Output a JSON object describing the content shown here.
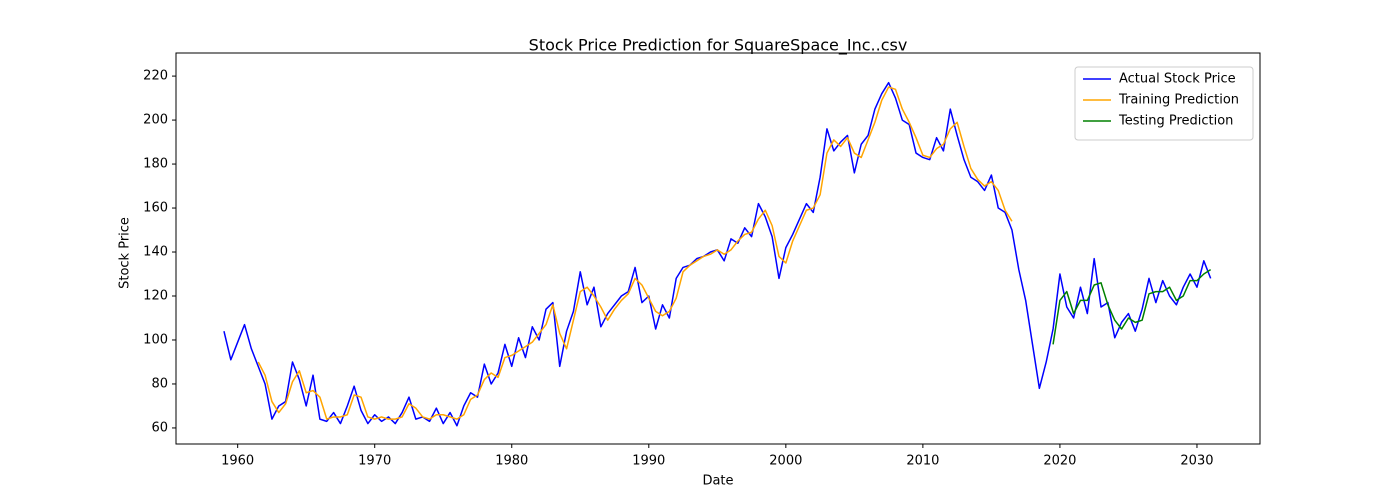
{
  "chart_data": {
    "type": "line",
    "title": "Stock Price Prediction for SquareSpace_Inc..csv",
    "x_label": "Date",
    "y_label": "Stock Price",
    "x": [
      1959.0,
      1959.5,
      1960.0,
      1960.5,
      1961.0,
      1961.5,
      1962.0,
      1962.5,
      1963.0,
      1963.5,
      1964.0,
      1964.5,
      1965.0,
      1965.5,
      1966.0,
      1966.5,
      1967.0,
      1967.5,
      1968.0,
      1968.5,
      1969.0,
      1969.5,
      1970.0,
      1970.5,
      1971.0,
      1971.5,
      1972.0,
      1972.5,
      1973.0,
      1973.5,
      1974.0,
      1974.5,
      1975.0,
      1975.5,
      1976.0,
      1976.5,
      1977.0,
      1977.5,
      1978.0,
      1978.5,
      1979.0,
      1979.5,
      1980.0,
      1980.5,
      1981.0,
      1981.5,
      1982.0,
      1982.5,
      1983.0,
      1983.5,
      1984.0,
      1984.5,
      1985.0,
      1985.5,
      1986.0,
      1986.5,
      1987.0,
      1987.5,
      1988.0,
      1988.5,
      1989.0,
      1989.5,
      1990.0,
      1990.5,
      1991.0,
      1991.5,
      1992.0,
      1992.5,
      1993.0,
      1993.5,
      1994.0,
      1994.5,
      1995.0,
      1995.5,
      1996.0,
      1996.5,
      1997.0,
      1997.5,
      1998.0,
      1998.5,
      1999.0,
      1999.5,
      2000.0,
      2000.5,
      2001.0,
      2001.5,
      2002.0,
      2002.5,
      2003.0,
      2003.5,
      2004.0,
      2004.5,
      2005.0,
      2005.5,
      2006.0,
      2006.5,
      2007.0,
      2007.5,
      2008.0,
      2008.5,
      2009.0,
      2009.5,
      2010.0,
      2010.5,
      2011.0,
      2011.5,
      2012.0,
      2012.5,
      2013.0,
      2013.5,
      2014.0,
      2014.5,
      2015.0,
      2015.5,
      2016.0,
      2016.5,
      2017.0,
      2017.5,
      2018.0,
      2018.5,
      2019.0,
      2019.5,
      2020.0,
      2020.5,
      2021.0,
      2021.5,
      2022.0,
      2022.5,
      2023.0,
      2023.5,
      2024.0,
      2024.5,
      2025.0,
      2025.5,
      2026.0,
      2026.5,
      2027.0,
      2027.5,
      2028.0,
      2028.5,
      2029.0,
      2029.5,
      2030.0,
      2030.5,
      2031.0
    ],
    "series": [
      {
        "name": "Actual Stock Price",
        "color": "#0000ff",
        "values": [
          104,
          91,
          99,
          107,
          96,
          88,
          80,
          64,
          70,
          72,
          90,
          82,
          70,
          84,
          64,
          63,
          67,
          62,
          70,
          79,
          68,
          62,
          66,
          63,
          65,
          62,
          67,
          74,
          64,
          65,
          63,
          69,
          62,
          67,
          61,
          70,
          76,
          74,
          89,
          80,
          85,
          98,
          88,
          101,
          92,
          106,
          100,
          114,
          117,
          88,
          104,
          113,
          131,
          116,
          124,
          106,
          112,
          116,
          120,
          122,
          133,
          117,
          120,
          105,
          116,
          110,
          128,
          133,
          134,
          137,
          138,
          140,
          141,
          136,
          146,
          144,
          151,
          147,
          162,
          156,
          147,
          128,
          142,
          148,
          155,
          162,
          158,
          174,
          196,
          186,
          190,
          193,
          176,
          189,
          193,
          205,
          212,
          217,
          210,
          200,
          198,
          185,
          183,
          182,
          192,
          186,
          205,
          193,
          182,
          174,
          172,
          168,
          175,
          160,
          158,
          150,
          132,
          118,
          98,
          78,
          90,
          105,
          130,
          115,
          110,
          124,
          112,
          137,
          115,
          117,
          101,
          108,
          112,
          104,
          114,
          128,
          117,
          127,
          120,
          116,
          124,
          130,
          124,
          136,
          128
        ]
      },
      {
        "name": "Training Prediction",
        "color": "#ffa500",
        "values": [
          null,
          null,
          null,
          null,
          null,
          90,
          84,
          72,
          67,
          71,
          81,
          86,
          76,
          77,
          74,
          64,
          65,
          65,
          66,
          75,
          74,
          65,
          64,
          65,
          64,
          64,
          65,
          71,
          69,
          65,
          64,
          66,
          66,
          65,
          64,
          66,
          73,
          75,
          82,
          85,
          83,
          92,
          93,
          95,
          97,
          99,
          103,
          107,
          116,
          103,
          96,
          109,
          122,
          124,
          120,
          115,
          109,
          114,
          118,
          121,
          128,
          125,
          119,
          113,
          111,
          113,
          119,
          131,
          134,
          136,
          138,
          139,
          141,
          139,
          141,
          145,
          148,
          149,
          155,
          159,
          152,
          138,
          135,
          145,
          152,
          159,
          160,
          166,
          185,
          191,
          188,
          192,
          185,
          183,
          191,
          199,
          209,
          215,
          214,
          205,
          199,
          192,
          184,
          183,
          187,
          189,
          196,
          199,
          188,
          178,
          173,
          170,
          172,
          168,
          159,
          154,
          null,
          null,
          null,
          null,
          null,
          null,
          null,
          null,
          null,
          null,
          null,
          null,
          null,
          null,
          null,
          null,
          null,
          null,
          null,
          null,
          null,
          null,
          null,
          null,
          null,
          null,
          null,
          null,
          null
        ]
      },
      {
        "name": "Testing Prediction",
        "color": "#008000",
        "values": [
          null,
          null,
          null,
          null,
          null,
          null,
          null,
          null,
          null,
          null,
          null,
          null,
          null,
          null,
          null,
          null,
          null,
          null,
          null,
          null,
          null,
          null,
          null,
          null,
          null,
          null,
          null,
          null,
          null,
          null,
          null,
          null,
          null,
          null,
          null,
          null,
          null,
          null,
          null,
          null,
          null,
          null,
          null,
          null,
          null,
          null,
          null,
          null,
          null,
          null,
          null,
          null,
          null,
          null,
          null,
          null,
          null,
          null,
          null,
          null,
          null,
          null,
          null,
          null,
          null,
          null,
          null,
          null,
          null,
          null,
          null,
          null,
          null,
          null,
          null,
          null,
          null,
          null,
          null,
          null,
          null,
          null,
          null,
          null,
          null,
          null,
          null,
          null,
          null,
          null,
          null,
          null,
          null,
          null,
          null,
          null,
          null,
          null,
          null,
          null,
          null,
          null,
          null,
          null,
          null,
          null,
          null,
          null,
          null,
          null,
          null,
          null,
          null,
          null,
          null,
          null,
          null,
          null,
          null,
          null,
          null,
          98,
          118,
          122,
          112,
          118,
          118,
          125,
          126,
          116,
          109,
          105,
          110,
          108,
          109,
          121,
          122,
          122,
          124,
          118,
          120,
          127,
          127,
          130,
          132
        ]
      }
    ],
    "xlim": [
      1955.5,
      2034.6
    ],
    "ylim": [
      52.7,
      230.5
    ],
    "xticks": [
      1960,
      1970,
      1980,
      1990,
      2000,
      2010,
      2020,
      2030
    ],
    "yticks": [
      60,
      80,
      100,
      120,
      140,
      160,
      180,
      200,
      220
    ],
    "legend": "upper right",
    "grid": false
  }
}
